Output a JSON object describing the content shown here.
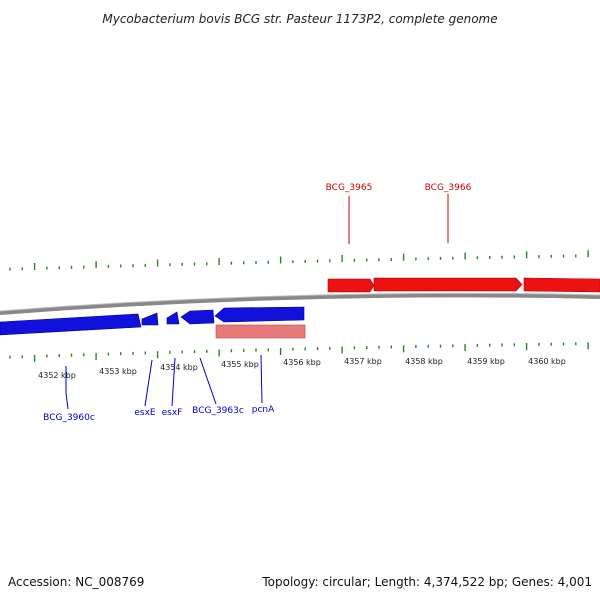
{
  "title": "Mycobacterium bovis BCG str. Pasteur 1173P2, complete genome",
  "footer": {
    "accession": "Accession: NC_008769",
    "summary": "Topology: circular; Length: 4,374,522 bp; Genes: 4,001"
  },
  "colors": {
    "forward": "#ee1111",
    "reverse": "#1111dd",
    "rna": "#e87a7a",
    "backbone": "#808080",
    "ticks": "#228822",
    "label_forward": "#cc0000",
    "label_reverse": "#0000cc"
  },
  "kbp_labels": [
    "4352 kbp",
    "4353 kbp",
    "4354 kbp",
    "4355 kbp",
    "4356 kbp",
    "4357 kbp",
    "4358 kbp",
    "4359 kbp",
    "4360 kbp"
  ],
  "genes_forward": [
    {
      "name": "BCG_3965"
    },
    {
      "name": "BCG_3966"
    }
  ],
  "genes_reverse": [
    {
      "name": "BCG_3960c"
    },
    {
      "name": "esxE"
    },
    {
      "name": "esxF"
    },
    {
      "name": "BCG_3963c"
    },
    {
      "name": "pcnA"
    }
  ]
}
